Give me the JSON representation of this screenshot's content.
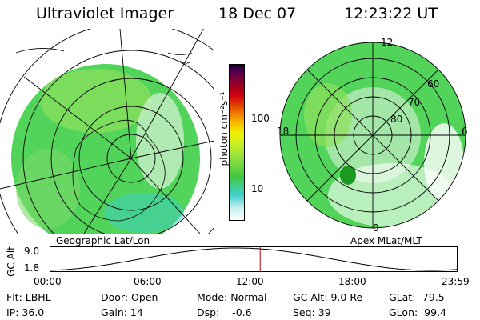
{
  "header": {
    "instrument": "Ultraviolet Imager",
    "date": "18 Dec 07",
    "time": "12:23:22 UT"
  },
  "colorbar": {
    "unit_label": "photon cm⁻²s⁻¹",
    "ticks": [
      "100",
      "10"
    ],
    "scale": "log",
    "colors": [
      "#ffffff",
      "#c8f0f0",
      "#40d0d0",
      "#40c840",
      "#90e040",
      "#d0f020",
      "#f0f000",
      "#f8c000",
      "#f08000",
      "#e04000",
      "#d00010",
      "#a00020",
      "#700040",
      "#400050",
      "#100020"
    ]
  },
  "geo_map": {
    "label": "Geographic Lat/Lon"
  },
  "apex_map": {
    "label": "Apex MLat/MLT",
    "mlt_labels": [
      "12",
      "18",
      "6",
      "0"
    ],
    "lat_labels": [
      "60",
      "70",
      "80"
    ]
  },
  "altitude_plot": {
    "ylabel": "GC Alt",
    "yticks": [
      "9.0",
      "1.8"
    ],
    "xticks": [
      "00:00",
      "06:00",
      "12:00",
      "18:00",
      "23:59"
    ],
    "current_time_fraction": 0.516
  },
  "info": {
    "flt": "Flt: LBHL",
    "ip": "IP: 36.0",
    "door": "Door: Open",
    "gain": "Gain: 14",
    "mode": "Mode: Normal",
    "dsp": "Dsp:    -0.6",
    "gcalt": "GC Alt: 9.0 Re",
    "seq": "Seq: 39",
    "glat": "GLat: -79.5",
    "glon": "GLon:  99.4"
  }
}
